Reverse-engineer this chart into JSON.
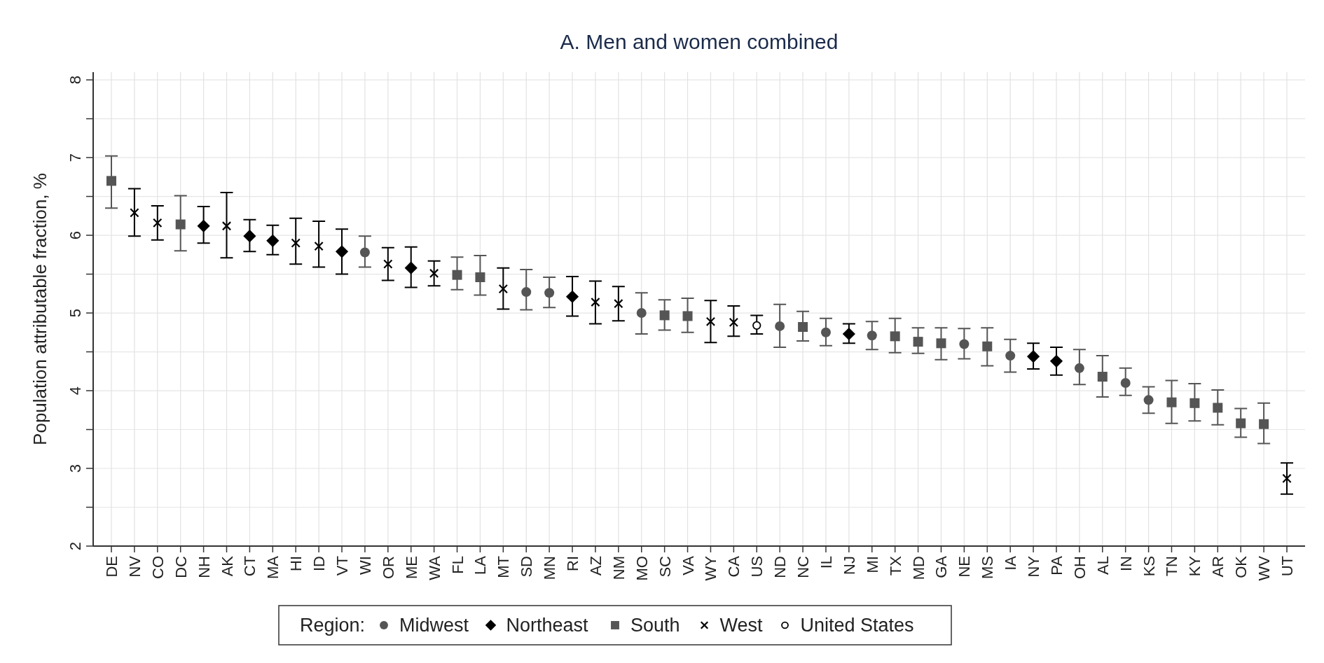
{
  "chart_data": {
    "type": "scatter",
    "title": "A. Men and women combined",
    "ylabel": "Population attributable fraction, %",
    "legend_title": "Region:",
    "legend": "bottom",
    "grid": true,
    "categories": [
      "DE",
      "NV",
      "CO",
      "DC",
      "NH",
      "AK",
      "CT",
      "MA",
      "HI",
      "ID",
      "VT",
      "WI",
      "OR",
      "ME",
      "WA",
      "FL",
      "LA",
      "MT",
      "SD",
      "MN",
      "RI",
      "AZ",
      "NM",
      "MO",
      "SC",
      "VA",
      "WY",
      "CA",
      "US",
      "ND",
      "NC",
      "IL",
      "NJ",
      "MI",
      "TX",
      "MD",
      "GA",
      "NE",
      "MS",
      "IA",
      "NY",
      "PA",
      "OH",
      "AL",
      "IN",
      "KS",
      "TN",
      "KY",
      "AR",
      "OK",
      "WV",
      "UT"
    ],
    "ylim": [
      2,
      8.1
    ],
    "yticks": [
      2,
      {
        "value": 2.5,
        "label": null
      },
      3,
      {
        "value": 3.5,
        "label": null
      },
      4,
      {
        "value": 4.5,
        "label": null
      },
      5,
      {
        "value": 5.5,
        "label": null
      },
      6,
      {
        "value": 6.5,
        "label": null
      },
      7,
      {
        "value": 7.5,
        "label": null
      },
      8
    ],
    "series": [
      {
        "name": "Midwest",
        "color": "#555555",
        "marker": "circle",
        "values": [
          null,
          null,
          null,
          null,
          null,
          null,
          null,
          null,
          null,
          null,
          null,
          5.78,
          null,
          null,
          null,
          null,
          null,
          null,
          5.27,
          5.26,
          null,
          null,
          null,
          5.0,
          null,
          null,
          null,
          null,
          null,
          4.83,
          null,
          4.75,
          null,
          4.71,
          null,
          null,
          null,
          4.6,
          null,
          4.45,
          null,
          null,
          4.29,
          null,
          4.1,
          3.88,
          null,
          null,
          null,
          null,
          null,
          null
        ],
        "errors": [
          null,
          null,
          null,
          null,
          null,
          null,
          null,
          null,
          null,
          null,
          null,
          [
            5.59,
            5.99
          ],
          null,
          null,
          null,
          null,
          null,
          null,
          [
            5.04,
            5.56
          ],
          [
            5.07,
            5.46
          ],
          null,
          null,
          null,
          [
            4.73,
            5.26
          ],
          null,
          null,
          null,
          null,
          null,
          [
            4.56,
            5.11
          ],
          null,
          [
            4.58,
            4.93
          ],
          null,
          [
            4.53,
            4.89
          ],
          null,
          null,
          null,
          [
            4.41,
            4.8
          ],
          null,
          [
            4.24,
            4.66
          ],
          null,
          null,
          [
            4.08,
            4.53
          ],
          null,
          [
            3.94,
            4.29
          ],
          [
            3.71,
            4.05
          ],
          null,
          null,
          null,
          null,
          null,
          null
        ]
      },
      {
        "name": "Northeast",
        "color": "#000000",
        "marker": "diamond",
        "values": [
          null,
          null,
          null,
          null,
          6.12,
          null,
          5.99,
          5.93,
          null,
          null,
          5.79,
          null,
          null,
          5.58,
          null,
          null,
          null,
          null,
          null,
          null,
          5.21,
          null,
          null,
          null,
          null,
          null,
          null,
          null,
          null,
          null,
          null,
          null,
          4.73,
          null,
          null,
          null,
          null,
          null,
          null,
          null,
          4.44,
          4.38,
          null,
          null,
          null,
          null,
          null,
          null,
          null,
          null,
          null,
          null
        ],
        "errors": [
          null,
          null,
          null,
          null,
          [
            5.9,
            6.37
          ],
          null,
          [
            5.79,
            6.2
          ],
          [
            5.75,
            6.13
          ],
          null,
          null,
          [
            5.5,
            6.08
          ],
          null,
          null,
          [
            5.33,
            5.85
          ],
          null,
          null,
          null,
          null,
          null,
          null,
          [
            4.96,
            5.47
          ],
          null,
          null,
          null,
          null,
          null,
          null,
          null,
          null,
          null,
          null,
          null,
          [
            4.61,
            4.86
          ],
          null,
          null,
          null,
          null,
          null,
          null,
          null,
          [
            4.28,
            4.61
          ],
          [
            4.2,
            4.56
          ],
          null,
          null,
          null,
          null,
          null,
          null,
          null,
          null,
          null,
          null
        ]
      },
      {
        "name": "South",
        "color": "#555555",
        "marker": "square",
        "values": [
          6.7,
          null,
          null,
          6.14,
          null,
          null,
          null,
          null,
          null,
          null,
          null,
          null,
          null,
          null,
          null,
          5.49,
          5.46,
          null,
          null,
          null,
          null,
          null,
          null,
          null,
          4.97,
          4.96,
          null,
          null,
          null,
          null,
          4.82,
          null,
          null,
          null,
          4.7,
          4.63,
          4.61,
          null,
          4.57,
          null,
          null,
          null,
          null,
          4.18,
          null,
          null,
          3.85,
          3.84,
          3.78,
          3.58,
          3.57,
          null
        ],
        "errors": [
          [
            6.35,
            7.02
          ],
          null,
          null,
          [
            5.8,
            6.51
          ],
          null,
          null,
          null,
          null,
          null,
          null,
          null,
          null,
          null,
          null,
          null,
          [
            5.3,
            5.72
          ],
          [
            5.23,
            5.74
          ],
          null,
          null,
          null,
          null,
          null,
          null,
          null,
          [
            4.78,
            5.17
          ],
          [
            4.75,
            5.19
          ],
          null,
          null,
          null,
          null,
          [
            4.64,
            5.02
          ],
          null,
          null,
          null,
          [
            4.49,
            4.93
          ],
          [
            4.48,
            4.81
          ],
          [
            4.4,
            4.81
          ],
          null,
          [
            4.32,
            4.81
          ],
          null,
          null,
          null,
          null,
          [
            3.92,
            4.45
          ],
          null,
          null,
          [
            3.58,
            4.13
          ],
          [
            3.61,
            4.09
          ],
          [
            3.56,
            4.01
          ],
          [
            3.4,
            3.77
          ],
          [
            3.32,
            3.84
          ],
          null
        ]
      },
      {
        "name": "West",
        "color": "#000000",
        "marker": "cross",
        "values": [
          null,
          6.29,
          6.16,
          null,
          null,
          6.12,
          null,
          null,
          5.9,
          5.86,
          null,
          null,
          5.63,
          null,
          5.51,
          null,
          null,
          5.31,
          null,
          null,
          null,
          5.14,
          5.12,
          null,
          null,
          null,
          4.89,
          4.88,
          null,
          null,
          null,
          null,
          null,
          null,
          null,
          null,
          null,
          null,
          null,
          null,
          null,
          null,
          null,
          null,
          null,
          null,
          null,
          null,
          null,
          null,
          null,
          2.87
        ],
        "errors": [
          null,
          [
            5.99,
            6.6
          ],
          [
            5.94,
            6.38
          ],
          null,
          null,
          [
            5.71,
            6.55
          ],
          null,
          null,
          [
            5.63,
            6.22
          ],
          [
            5.59,
            6.18
          ],
          null,
          null,
          [
            5.42,
            5.84
          ],
          null,
          [
            5.35,
            5.67
          ],
          null,
          null,
          [
            5.05,
            5.58
          ],
          null,
          null,
          null,
          [
            4.86,
            5.41
          ],
          [
            4.9,
            5.34
          ],
          null,
          null,
          null,
          [
            4.62,
            5.16
          ],
          [
            4.7,
            5.09
          ],
          null,
          null,
          null,
          null,
          null,
          null,
          null,
          null,
          null,
          null,
          null,
          null,
          null,
          null,
          null,
          null,
          null,
          null,
          null,
          null,
          null,
          null,
          null,
          [
            2.67,
            3.07
          ]
        ]
      },
      {
        "name": "United States",
        "color": "#000000",
        "marker": "circle",
        "values": [
          null,
          null,
          null,
          null,
          null,
          null,
          null,
          null,
          null,
          null,
          null,
          null,
          null,
          null,
          null,
          null,
          null,
          null,
          null,
          null,
          null,
          null,
          null,
          null,
          null,
          null,
          null,
          null,
          4.84,
          null,
          null,
          null,
          null,
          null,
          null,
          null,
          null,
          null,
          null,
          null,
          null,
          null,
          null,
          null,
          null,
          null,
          null,
          null,
          null,
          null,
          null,
          null
        ],
        "errors": [
          null,
          null,
          null,
          null,
          null,
          null,
          null,
          null,
          null,
          null,
          null,
          null,
          null,
          null,
          null,
          null,
          null,
          null,
          null,
          null,
          null,
          null,
          null,
          null,
          null,
          null,
          null,
          null,
          [
            4.73,
            4.97
          ],
          null,
          null,
          null,
          null,
          null,
          null,
          null,
          null,
          null,
          null,
          null,
          null,
          null,
          null,
          null,
          null,
          null,
          null,
          null,
          null,
          null,
          null,
          null
        ]
      }
    ]
  }
}
